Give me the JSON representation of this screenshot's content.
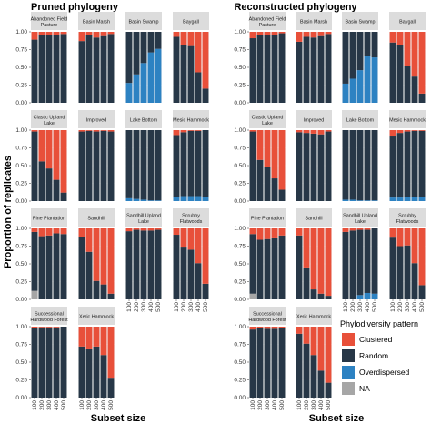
{
  "figure": {
    "y_axis_label": "Proportion of replicates",
    "x_axis_label": "Subset size",
    "legend_title": "Phylodiversity pattern"
  },
  "colors": {
    "Clustered": "#e8503a",
    "Random": "#273747",
    "Overdispersed": "#2d82c2",
    "NA": "#a6a6a6",
    "strip": "#dcdcdc",
    "panel_bg": "#f2f2f2"
  },
  "chart_data": [
    {
      "type": "bar",
      "stacked": true,
      "title": "Pruned phylogeny",
      "xlabel": "Subset size",
      "ylabel": "Proportion of replicates",
      "ylim": [
        0,
        1
      ],
      "y_ticks": [
        "0.00",
        "0.25",
        "0.50",
        "0.75",
        "1.00"
      ],
      "categories": [
        "100",
        "200",
        "300",
        "400",
        "500"
      ],
      "stack_order": [
        "NA",
        "Overdispersed",
        "Random",
        "Clustered"
      ],
      "legend": {
        "title": "Phylodiversity pattern",
        "entries": [
          "Clustered",
          "Random",
          "Overdispersed",
          "NA"
        ],
        "position": "right"
      },
      "facets": [
        {
          "name": "Abandoned Field Pasture",
          "NA": [
            0,
            0,
            0,
            0,
            0
          ],
          "Overdispersed": [
            0,
            0,
            0,
            0,
            0
          ],
          "Random": [
            0.89,
            0.95,
            0.95,
            0.96,
            0.97
          ],
          "Clustered": [
            0.11,
            0.05,
            0.05,
            0.04,
            0.03
          ]
        },
        {
          "name": "Basin Marsh",
          "NA": [
            0,
            0,
            0,
            0,
            0
          ],
          "Overdispersed": [
            0,
            0,
            0,
            0,
            0
          ],
          "Random": [
            0.87,
            0.95,
            0.92,
            0.94,
            0.97
          ],
          "Clustered": [
            0.13,
            0.05,
            0.08,
            0.06,
            0.03
          ]
        },
        {
          "name": "Basin Swamp",
          "NA": [
            0,
            0,
            0,
            0,
            0
          ],
          "Overdispersed": [
            0.28,
            0.4,
            0.56,
            0.71,
            0.76
          ],
          "Random": [
            0.72,
            0.6,
            0.44,
            0.29,
            0.24
          ],
          "Clustered": [
            0,
            0,
            0,
            0,
            0
          ]
        },
        {
          "name": "Baygall",
          "NA": [
            0,
            0,
            0,
            0,
            0
          ],
          "Overdispersed": [
            0,
            0,
            0,
            0,
            0
          ],
          "Random": [
            0.93,
            0.81,
            0.8,
            0.43,
            0.2
          ],
          "Clustered": [
            0.07,
            0.19,
            0.2,
            0.57,
            0.8
          ]
        },
        {
          "name": "Clastic Upland Lake",
          "NA": [
            0,
            0,
            0,
            0,
            0
          ],
          "Overdispersed": [
            0,
            0,
            0,
            0,
            0
          ],
          "Random": [
            0.98,
            0.56,
            0.46,
            0.3,
            0.12
          ],
          "Clustered": [
            0.02,
            0.44,
            0.54,
            0.7,
            0.88
          ]
        },
        {
          "name": "Improved",
          "NA": [
            0,
            0,
            0,
            0,
            0
          ],
          "Overdispersed": [
            0,
            0,
            0,
            0,
            0
          ],
          "Random": [
            0.98,
            0.99,
            0.98,
            0.99,
            0.98
          ],
          "Clustered": [
            0.02,
            0.01,
            0.02,
            0.01,
            0.02
          ]
        },
        {
          "name": "Lake Bottom",
          "NA": [
            0,
            0,
            0,
            0,
            0
          ],
          "Overdispersed": [
            0.04,
            0.03,
            0.02,
            0.01,
            0.01
          ],
          "Random": [
            0.96,
            0.97,
            0.98,
            0.99,
            0.99
          ],
          "Clustered": [
            0,
            0,
            0,
            0,
            0
          ]
        },
        {
          "name": "Mesic Hammock",
          "NA": [
            0,
            0,
            0,
            0,
            0
          ],
          "Overdispersed": [
            0.06,
            0.07,
            0.07,
            0.07,
            0.06
          ],
          "Random": [
            0.87,
            0.9,
            0.92,
            0.92,
            0.94
          ],
          "Clustered": [
            0.07,
            0.03,
            0.01,
            0.01,
            0
          ]
        },
        {
          "name": "Pine Plantation",
          "NA": [
            0.12,
            0,
            0,
            0,
            0
          ],
          "Overdispersed": [
            0,
            0,
            0,
            0,
            0
          ],
          "Random": [
            0.83,
            0.89,
            0.9,
            0.93,
            0.92
          ],
          "Clustered": [
            0.05,
            0.11,
            0.1,
            0.07,
            0.08
          ]
        },
        {
          "name": "Sandhill",
          "NA": [
            0,
            0,
            0,
            0,
            0
          ],
          "Overdispersed": [
            0,
            0,
            0,
            0,
            0
          ],
          "Random": [
            0.88,
            0.67,
            0.26,
            0.21,
            0.08
          ],
          "Clustered": [
            0.12,
            0.33,
            0.74,
            0.79,
            0.92
          ]
        },
        {
          "name": "Sandhill Upland Lake",
          "NA": [
            0,
            0,
            0,
            0,
            0
          ],
          "Overdispersed": [
            0,
            0,
            0,
            0,
            0
          ],
          "Random": [
            0.96,
            0.98,
            0.97,
            0.97,
            0.98
          ],
          "Clustered": [
            0.04,
            0.02,
            0.03,
            0.03,
            0.02
          ]
        },
        {
          "name": "Scrubby Flatwoods",
          "NA": [
            0,
            0,
            0,
            0,
            0
          ],
          "Overdispersed": [
            0,
            0,
            0,
            0,
            0
          ],
          "Random": [
            0.91,
            0.73,
            0.7,
            0.51,
            0.22
          ],
          "Clustered": [
            0.09,
            0.27,
            0.3,
            0.49,
            0.78
          ]
        },
        {
          "name": "Successional Hardwood Forest",
          "NA": [
            0,
            0,
            0,
            0,
            0
          ],
          "Overdispersed": [
            0,
            0,
            0,
            0,
            0
          ],
          "Random": [
            0.98,
            0.99,
            0.99,
            0.99,
            1.0
          ],
          "Clustered": [
            0.02,
            0.01,
            0.01,
            0.01,
            0
          ]
        },
        {
          "name": "Xeric Hammock",
          "NA": [
            0,
            0,
            0,
            0,
            0
          ],
          "Overdispersed": [
            0,
            0,
            0,
            0,
            0
          ],
          "Random": [
            0.72,
            0.68,
            0.72,
            0.6,
            0.28
          ],
          "Clustered": [
            0.28,
            0.32,
            0.28,
            0.4,
            0.72
          ]
        }
      ]
    },
    {
      "type": "bar",
      "stacked": true,
      "title": "Reconstructed phylogeny",
      "xlabel": "Subset size",
      "ylabel": "",
      "ylim": [
        0,
        1
      ],
      "y_ticks": [
        "0.00",
        "0.25",
        "0.50",
        "0.75",
        "1.00"
      ],
      "categories": [
        "100",
        "200",
        "300",
        "400",
        "500"
      ],
      "stack_order": [
        "NA",
        "Overdispersed",
        "Random",
        "Clustered"
      ],
      "facets": [
        {
          "name": "Abandoned Field Pasture",
          "NA": [
            0,
            0,
            0,
            0,
            0
          ],
          "Overdispersed": [
            0,
            0,
            0,
            0,
            0
          ],
          "Random": [
            0.91,
            0.96,
            0.96,
            0.96,
            0.98
          ],
          "Clustered": [
            0.09,
            0.04,
            0.04,
            0.04,
            0.02
          ]
        },
        {
          "name": "Basin Marsh",
          "NA": [
            0,
            0,
            0,
            0,
            0
          ],
          "Overdispersed": [
            0,
            0,
            0,
            0,
            0
          ],
          "Random": [
            0.86,
            0.93,
            0.92,
            0.94,
            0.97
          ],
          "Clustered": [
            0.14,
            0.07,
            0.08,
            0.06,
            0.03
          ]
        },
        {
          "name": "Basin Swamp",
          "NA": [
            0,
            0,
            0,
            0,
            0
          ],
          "Overdispersed": [
            0.27,
            0.34,
            0.46,
            0.66,
            0.64
          ],
          "Random": [
            0.73,
            0.66,
            0.54,
            0.34,
            0.36
          ],
          "Clustered": [
            0,
            0,
            0,
            0,
            0
          ]
        },
        {
          "name": "Baygall",
          "NA": [
            0,
            0,
            0,
            0,
            0
          ],
          "Overdispersed": [
            0,
            0,
            0,
            0,
            0
          ],
          "Random": [
            0.85,
            0.81,
            0.52,
            0.37,
            0.13
          ],
          "Clustered": [
            0.15,
            0.19,
            0.48,
            0.63,
            0.87
          ]
        },
        {
          "name": "Clastic Upland Lake",
          "NA": [
            0,
            0,
            0,
            0,
            0
          ],
          "Overdispersed": [
            0,
            0,
            0,
            0,
            0
          ],
          "Random": [
            0.98,
            0.58,
            0.48,
            0.32,
            0.16
          ],
          "Clustered": [
            0.02,
            0.42,
            0.52,
            0.68,
            0.84
          ]
        },
        {
          "name": "Improved",
          "NA": [
            0,
            0,
            0,
            0,
            0
          ],
          "Overdispersed": [
            0,
            0,
            0,
            0,
            0
          ],
          "Random": [
            0.97,
            0.96,
            0.95,
            0.94,
            0.98
          ],
          "Clustered": [
            0.03,
            0.04,
            0.05,
            0.06,
            0.02
          ]
        },
        {
          "name": "Lake Bottom",
          "NA": [
            0,
            0,
            0,
            0,
            0
          ],
          "Overdispersed": [
            0.02,
            0.02,
            0.01,
            0.01,
            0.01
          ],
          "Random": [
            0.98,
            0.98,
            0.99,
            0.99,
            0.99
          ],
          "Clustered": [
            0,
            0,
            0,
            0,
            0
          ]
        },
        {
          "name": "Mesic Hammock",
          "NA": [
            0,
            0,
            0,
            0,
            0
          ],
          "Overdispersed": [
            0.05,
            0.05,
            0.06,
            0.06,
            0.06
          ],
          "Random": [
            0.86,
            0.91,
            0.92,
            0.93,
            0.93
          ],
          "Clustered": [
            0.09,
            0.04,
            0.02,
            0.01,
            0.01
          ]
        },
        {
          "name": "Pine Plantation",
          "NA": [
            0.08,
            0,
            0,
            0,
            0
          ],
          "Overdispersed": [
            0,
            0,
            0,
            0,
            0
          ],
          "Random": [
            0.84,
            0.84,
            0.85,
            0.86,
            0.9
          ],
          "Clustered": [
            0.08,
            0.16,
            0.15,
            0.14,
            0.1
          ]
        },
        {
          "name": "Sandhill",
          "NA": [
            0,
            0,
            0,
            0,
            0
          ],
          "Overdispersed": [
            0,
            0,
            0,
            0,
            0
          ],
          "Random": [
            0.9,
            0.45,
            0.14,
            0.08,
            0.05
          ],
          "Clustered": [
            0.1,
            0.55,
            0.86,
            0.92,
            0.95
          ]
        },
        {
          "name": "Sandhill Upland Lake",
          "NA": [
            0,
            0,
            0,
            0,
            0
          ],
          "Overdispersed": [
            0,
            0,
            0.06,
            0.09,
            0.08
          ],
          "Random": [
            0.95,
            0.97,
            0.92,
            0.89,
            0.92
          ],
          "Clustered": [
            0.05,
            0.03,
            0.02,
            0.02,
            0
          ]
        },
        {
          "name": "Scrubby Flatwoods",
          "NA": [
            0,
            0,
            0,
            0,
            0
          ],
          "Overdispersed": [
            0,
            0,
            0,
            0,
            0
          ],
          "Random": [
            0.87,
            0.75,
            0.76,
            0.51,
            0.2
          ],
          "Clustered": [
            0.13,
            0.25,
            0.24,
            0.49,
            0.8
          ]
        },
        {
          "name": "Successional Hardwood Forest",
          "NA": [
            0,
            0,
            0,
            0,
            0
          ],
          "Overdispersed": [
            0,
            0,
            0,
            0,
            0
          ],
          "Random": [
            0.96,
            0.98,
            0.97,
            0.97,
            0.98
          ],
          "Clustered": [
            0.04,
            0.02,
            0.03,
            0.03,
            0.02
          ]
        },
        {
          "name": "Xeric Hammock",
          "NA": [
            0,
            0,
            0,
            0,
            0
          ],
          "Overdispersed": [
            0,
            0,
            0,
            0,
            0
          ],
          "Random": [
            0.9,
            0.76,
            0.6,
            0.38,
            0.21
          ],
          "Clustered": [
            0.1,
            0.24,
            0.4,
            0.62,
            0.79
          ]
        }
      ]
    }
  ]
}
